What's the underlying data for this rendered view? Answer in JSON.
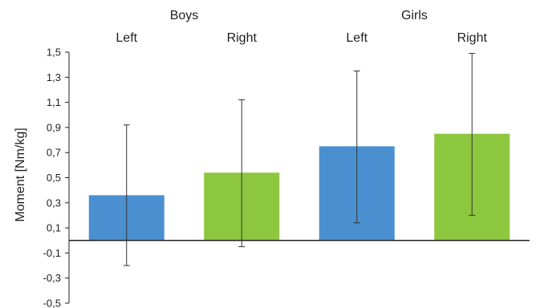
{
  "chart_data": {
    "type": "bar",
    "groups": [
      {
        "label": "Boys",
        "categories": [
          "Left",
          "Right"
        ]
      },
      {
        "label": "Girls",
        "categories": [
          "Left",
          "Right"
        ]
      }
    ],
    "bars": [
      {
        "group": "Boys",
        "category": "Left",
        "value": 0.36,
        "error_low": -0.2,
        "error_high": 0.92,
        "color": "#4a90d0"
      },
      {
        "group": "Boys",
        "category": "Right",
        "value": 0.54,
        "error_low": -0.05,
        "error_high": 1.12,
        "color": "#8dc63f"
      },
      {
        "group": "Girls",
        "category": "Left",
        "value": 0.75,
        "error_low": 0.14,
        "error_high": 1.35,
        "color": "#4a90d0"
      },
      {
        "group": "Girls",
        "category": "Right",
        "value": 0.85,
        "error_low": 0.2,
        "error_high": 1.49,
        "color": "#8dc63f"
      }
    ],
    "ylabel": "Moment [Nm/kg]",
    "ylim": [
      -0.5,
      1.5
    ],
    "yticks": [
      "1,5",
      "1,3",
      "1,1",
      "0,9",
      "0,7",
      "0,5",
      "0,3",
      "0,1",
      "-0,1",
      "-0,3",
      "-0,5"
    ],
    "ytick_values": [
      1.5,
      1.3,
      1.1,
      0.9,
      0.7,
      0.5,
      0.3,
      0.1,
      -0.1,
      -0.3,
      -0.5
    ],
    "grid": false,
    "legend": "none"
  }
}
